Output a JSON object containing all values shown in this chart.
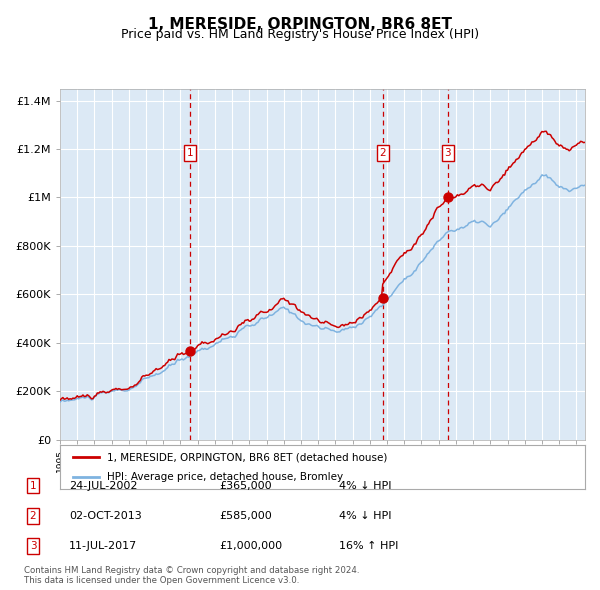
{
  "title": "1, MERESIDE, ORPINGTON, BR6 8ET",
  "subtitle": "Price paid vs. HM Land Registry's House Price Index (HPI)",
  "title_fontsize": 11,
  "subtitle_fontsize": 9,
  "bg_color": "#dce9f5",
  "fig_bg_color": "#ffffff",
  "grid_color": "#ffffff",
  "hpi_line_color": "#7fb3e0",
  "price_line_color": "#cc0000",
  "marker_color": "#cc0000",
  "dashed_color": "#cc0000",
  "ylabel_values": [
    0,
    200000,
    400000,
    600000,
    800000,
    1000000,
    1200000,
    1400000
  ],
  "ylabel_labels": [
    "£0",
    "£200K",
    "£400K",
    "£600K",
    "£800K",
    "£1M",
    "£1.2M",
    "£1.4M"
  ],
  "sale_dates": [
    2002.56,
    2013.75,
    2017.53
  ],
  "sale_prices": [
    365000,
    585000,
    1000000
  ],
  "sale_labels": [
    "1",
    "2",
    "3"
  ],
  "legend_line1": "1, MERESIDE, ORPINGTON, BR6 8ET (detached house)",
  "legend_line2": "HPI: Average price, detached house, Bromley",
  "table_entries": [
    {
      "num": "1",
      "date": "24-JUL-2002",
      "price": "£365,000",
      "pct": "4%",
      "dir": "↓",
      "ref": "HPI"
    },
    {
      "num": "2",
      "date": "02-OCT-2013",
      "price": "£585,000",
      "pct": "4%",
      "dir": "↓",
      "ref": "HPI"
    },
    {
      "num": "3",
      "date": "11-JUL-2017",
      "price": "£1,000,000",
      "pct": "16%",
      "dir": "↑",
      "ref": "HPI"
    }
  ],
  "footer": "Contains HM Land Registry data © Crown copyright and database right 2024.\nThis data is licensed under the Open Government Licence v3.0.",
  "xmin": 1995.0,
  "xmax": 2025.5,
  "ymin": 0,
  "ymax": 1450000
}
